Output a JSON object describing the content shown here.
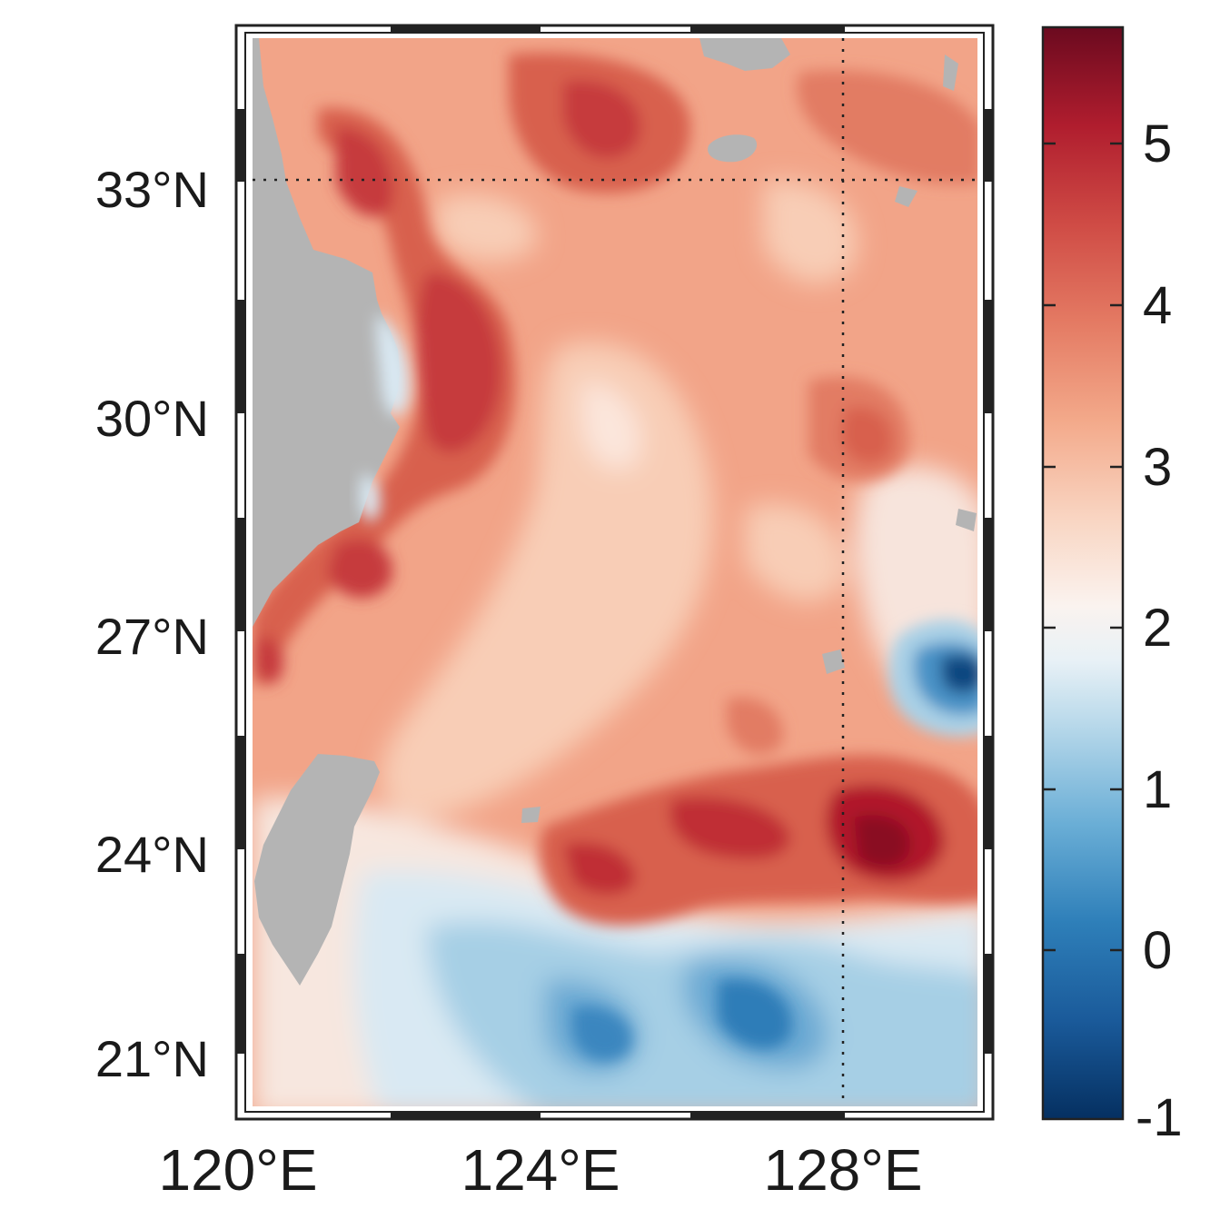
{
  "map": {
    "lon_ticks": [
      "120°E",
      "124°E",
      "128°E"
    ],
    "lat_ticks": [
      "33°N",
      "30°N",
      "27°N",
      "24°N",
      "21°N"
    ],
    "reference_lines": {
      "latitude": "33°N",
      "longitude": "128°E",
      "style": "dotted"
    },
    "land_color": "#b4b4b4"
  },
  "colorbar": {
    "ticks": [
      "5",
      "4",
      "3",
      "2",
      "1",
      "0",
      "-1"
    ],
    "range": [
      -1,
      5.6
    ],
    "colormap": [
      "#053061",
      "#2166ac",
      "#4393c3",
      "#92c5de",
      "#d1e5f0",
      "#f7f7f7",
      "#fddbc7",
      "#f4a582",
      "#d6604d",
      "#b2182b",
      "#67001f"
    ]
  },
  "field": {
    "description_colors": {
      "coastal_band": "#d6604d",
      "central_sea": "#f4a582",
      "southern_cold": "#4393c3",
      "eastern_eddy": "#053061"
    }
  }
}
